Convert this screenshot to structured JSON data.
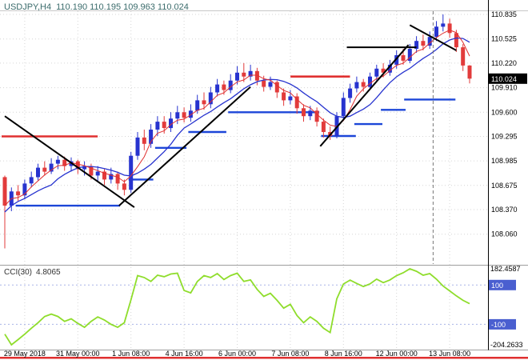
{
  "header": {
    "symbol": "USDJPY,H4",
    "ohlc": "110.190 110.195 109.963 110.024"
  },
  "colors": {
    "bull": "#2733cf",
    "bear": "#e23b3b",
    "ma_fast": "#e03030",
    "ma_slow": "#2733cf",
    "step_line": "#1c46d8",
    "trend_line": "#000000",
    "cci_line": "#8fdd2c",
    "level_box": "#4a5fd0",
    "price_box_bg": "#000000",
    "bottom_bar": "#e03030",
    "header_text": "#3a6b6b"
  },
  "chart_data": {
    "type": "candlestick",
    "symbol": "USDJPY",
    "timeframe": "H4",
    "ohlc_display": {
      "open": "110.190",
      "high": "110.195",
      "low": "109.963",
      "close": "110.024"
    },
    "current_price": "110.024",
    "price_axis_ticks": [
      "110.835",
      "110.525",
      "110.220",
      "109.910",
      "109.600",
      "109.295",
      "108.985",
      "108.675",
      "108.370",
      "108.060"
    ],
    "x_labels": [
      {
        "index": 3,
        "label": "29 May 2018"
      },
      {
        "index": 11,
        "label": "31 May 00:00"
      },
      {
        "index": 19,
        "label": "1 Jun 08:00"
      },
      {
        "index": 27,
        "label": "4 Jun 16:00"
      },
      {
        "index": 35,
        "label": "6 Jun 00:00"
      },
      {
        "index": 43,
        "label": "7 Jun 08:00"
      },
      {
        "index": 51,
        "label": "8 Jun 16:00"
      },
      {
        "index": 59,
        "label": "12 Jun 00:00"
      },
      {
        "index": 67,
        "label": "13 Jun 08:00"
      }
    ],
    "candles": [
      [
        108.78,
        108.8,
        107.88,
        108.42
      ],
      [
        108.42,
        108.65,
        108.35,
        108.6
      ],
      [
        108.6,
        108.68,
        108.48,
        108.55
      ],
      [
        108.55,
        108.75,
        108.5,
        108.7
      ],
      [
        108.7,
        108.85,
        108.65,
        108.78
      ],
      [
        108.78,
        108.95,
        108.74,
        108.9
      ],
      [
        108.9,
        108.98,
        108.8,
        108.85
      ],
      [
        108.85,
        109.02,
        108.82,
        108.95
      ],
      [
        108.95,
        109.05,
        108.88,
        109.0
      ],
      [
        109.0,
        109.04,
        108.86,
        108.92
      ],
      [
        108.92,
        109.03,
        108.85,
        108.98
      ],
      [
        108.98,
        109.0,
        108.82,
        108.88
      ],
      [
        108.88,
        108.98,
        108.8,
        108.92
      ],
      [
        108.92,
        108.95,
        108.75,
        108.8
      ],
      [
        108.8,
        108.92,
        108.72,
        108.85
      ],
      [
        108.85,
        108.88,
        108.68,
        108.75
      ],
      [
        108.75,
        108.9,
        108.7,
        108.82
      ],
      [
        108.82,
        108.85,
        108.62,
        108.7
      ],
      [
        108.7,
        108.75,
        108.55,
        108.62
      ],
      [
        108.62,
        109.1,
        108.58,
        109.05
      ],
      [
        109.05,
        109.35,
        109.0,
        109.28
      ],
      [
        109.28,
        109.38,
        109.12,
        109.2
      ],
      [
        109.2,
        109.45,
        109.15,
        109.38
      ],
      [
        109.38,
        109.55,
        109.3,
        109.48
      ],
      [
        109.48,
        109.55,
        109.33,
        109.4
      ],
      [
        109.4,
        109.6,
        109.35,
        109.52
      ],
      [
        109.52,
        109.68,
        109.45,
        109.6
      ],
      [
        109.6,
        109.66,
        109.47,
        109.53
      ],
      [
        109.53,
        109.7,
        109.48,
        109.62
      ],
      [
        109.62,
        109.82,
        109.58,
        109.75
      ],
      [
        109.75,
        109.85,
        109.63,
        109.7
      ],
      [
        109.7,
        109.92,
        109.65,
        109.85
      ],
      [
        109.85,
        110.02,
        109.8,
        109.95
      ],
      [
        109.95,
        110.0,
        109.82,
        109.88
      ],
      [
        109.88,
        110.08,
        109.84,
        110.0
      ],
      [
        110.0,
        110.18,
        109.95,
        110.1
      ],
      [
        110.1,
        110.22,
        109.98,
        110.05
      ],
      [
        110.05,
        110.2,
        110.0,
        110.12
      ],
      [
        110.12,
        110.16,
        109.94,
        110.0
      ],
      [
        110.0,
        110.06,
        109.86,
        109.92
      ],
      [
        109.92,
        110.05,
        109.88,
        109.98
      ],
      [
        109.98,
        110.0,
        109.78,
        109.85
      ],
      [
        109.85,
        109.9,
        109.68,
        109.75
      ],
      [
        109.75,
        109.88,
        109.7,
        109.8
      ],
      [
        109.8,
        109.84,
        109.58,
        109.65
      ],
      [
        109.65,
        109.7,
        109.48,
        109.55
      ],
      [
        109.55,
        109.68,
        109.5,
        109.62
      ],
      [
        109.62,
        109.66,
        109.42,
        109.48
      ],
      [
        109.48,
        109.52,
        109.28,
        109.35
      ],
      [
        109.35,
        109.42,
        109.25,
        109.3
      ],
      [
        109.3,
        109.6,
        109.27,
        109.55
      ],
      [
        109.55,
        109.85,
        109.5,
        109.78
      ],
      [
        109.78,
        109.96,
        109.72,
        109.9
      ],
      [
        109.9,
        110.05,
        109.85,
        109.98
      ],
      [
        109.98,
        110.02,
        109.86,
        109.92
      ],
      [
        109.92,
        110.1,
        109.88,
        110.05
      ],
      [
        110.05,
        110.2,
        110.0,
        110.15
      ],
      [
        110.15,
        110.22,
        110.04,
        110.1
      ],
      [
        110.1,
        110.26,
        110.06,
        110.2
      ],
      [
        110.2,
        110.38,
        110.15,
        110.32
      ],
      [
        110.32,
        110.4,
        110.2,
        110.25
      ],
      [
        110.25,
        110.46,
        110.22,
        110.4
      ],
      [
        110.4,
        110.56,
        110.35,
        110.5
      ],
      [
        110.5,
        110.58,
        110.38,
        110.44
      ],
      [
        110.44,
        110.62,
        110.4,
        110.55
      ],
      [
        110.55,
        110.75,
        110.5,
        110.68
      ],
      [
        110.68,
        110.835,
        110.62,
        110.72
      ],
      [
        110.72,
        110.78,
        110.54,
        110.6
      ],
      [
        110.6,
        110.64,
        110.36,
        110.42
      ],
      [
        110.42,
        110.46,
        110.12,
        110.19
      ],
      [
        110.19,
        110.195,
        109.963,
        110.024
      ]
    ],
    "overlays": {
      "step_segments": [
        {
          "from": 2,
          "to": 17,
          "value": 108.42
        },
        {
          "from": 19,
          "to": 22,
          "value": 108.75
        },
        {
          "from": 23,
          "to": 27,
          "value": 109.15
        },
        {
          "from": 28,
          "to": 33,
          "value": 109.35
        },
        {
          "from": 34,
          "to": 47,
          "value": 109.6
        },
        {
          "from": 48,
          "to": 52.5,
          "value": 109.3
        },
        {
          "from": 53,
          "to": 56.5,
          "value": 109.45
        },
        {
          "from": 57,
          "to": 60,
          "value": 109.63
        },
        {
          "from": 60.5,
          "to": 67.5,
          "value": 109.76
        }
      ],
      "red_lines": [
        {
          "from": 0,
          "to": 13.5,
          "price": 109.295
        },
        {
          "from": 43.5,
          "to": 51.5,
          "price": 110.05
        }
      ],
      "black_resistance": {
        "from": 51.5,
        "to": 62,
        "price": 110.42
      },
      "trend_lines": [
        {
          "i1": 0,
          "p1": 109.55,
          "i2": 19.5,
          "p2": 108.4
        },
        {
          "i1": 17.2,
          "p1": 108.42,
          "i2": 37,
          "p2": 109.92
        },
        {
          "i1": 47.5,
          "p1": 109.17,
          "i2": 60.8,
          "p2": 110.45
        },
        {
          "i1": 61,
          "p1": 110.7,
          "i2": 68,
          "p2": 110.38
        }
      ],
      "vline_index": 64.5
    },
    "cci": {
      "name": "CCI(30)",
      "value_label": "4.8065",
      "scale_top": "182.4587",
      "scale_bottom": "-204.2633",
      "levels": [
        "100",
        "-100"
      ],
      "values": [
        -150,
        -204.2633,
        -178,
        -150,
        -120,
        -92,
        -60,
        -48,
        -60,
        -85,
        -72,
        -95,
        -115,
        -85,
        -62,
        -78,
        -100,
        -115,
        -92,
        25,
        148,
        138,
        118,
        150,
        142,
        156,
        160,
        72,
        60,
        118,
        148,
        138,
        158,
        128,
        148,
        160,
        118,
        126,
        78,
        42,
        58,
        22,
        -18,
        2,
        -55,
        -92,
        -62,
        -85,
        -120,
        -142,
        30,
        105,
        125,
        108,
        92,
        106,
        130,
        112,
        126,
        148,
        162,
        182.4587,
        170,
        150,
        158,
        130,
        95,
        70,
        45,
        22,
        4.8065
      ]
    }
  }
}
